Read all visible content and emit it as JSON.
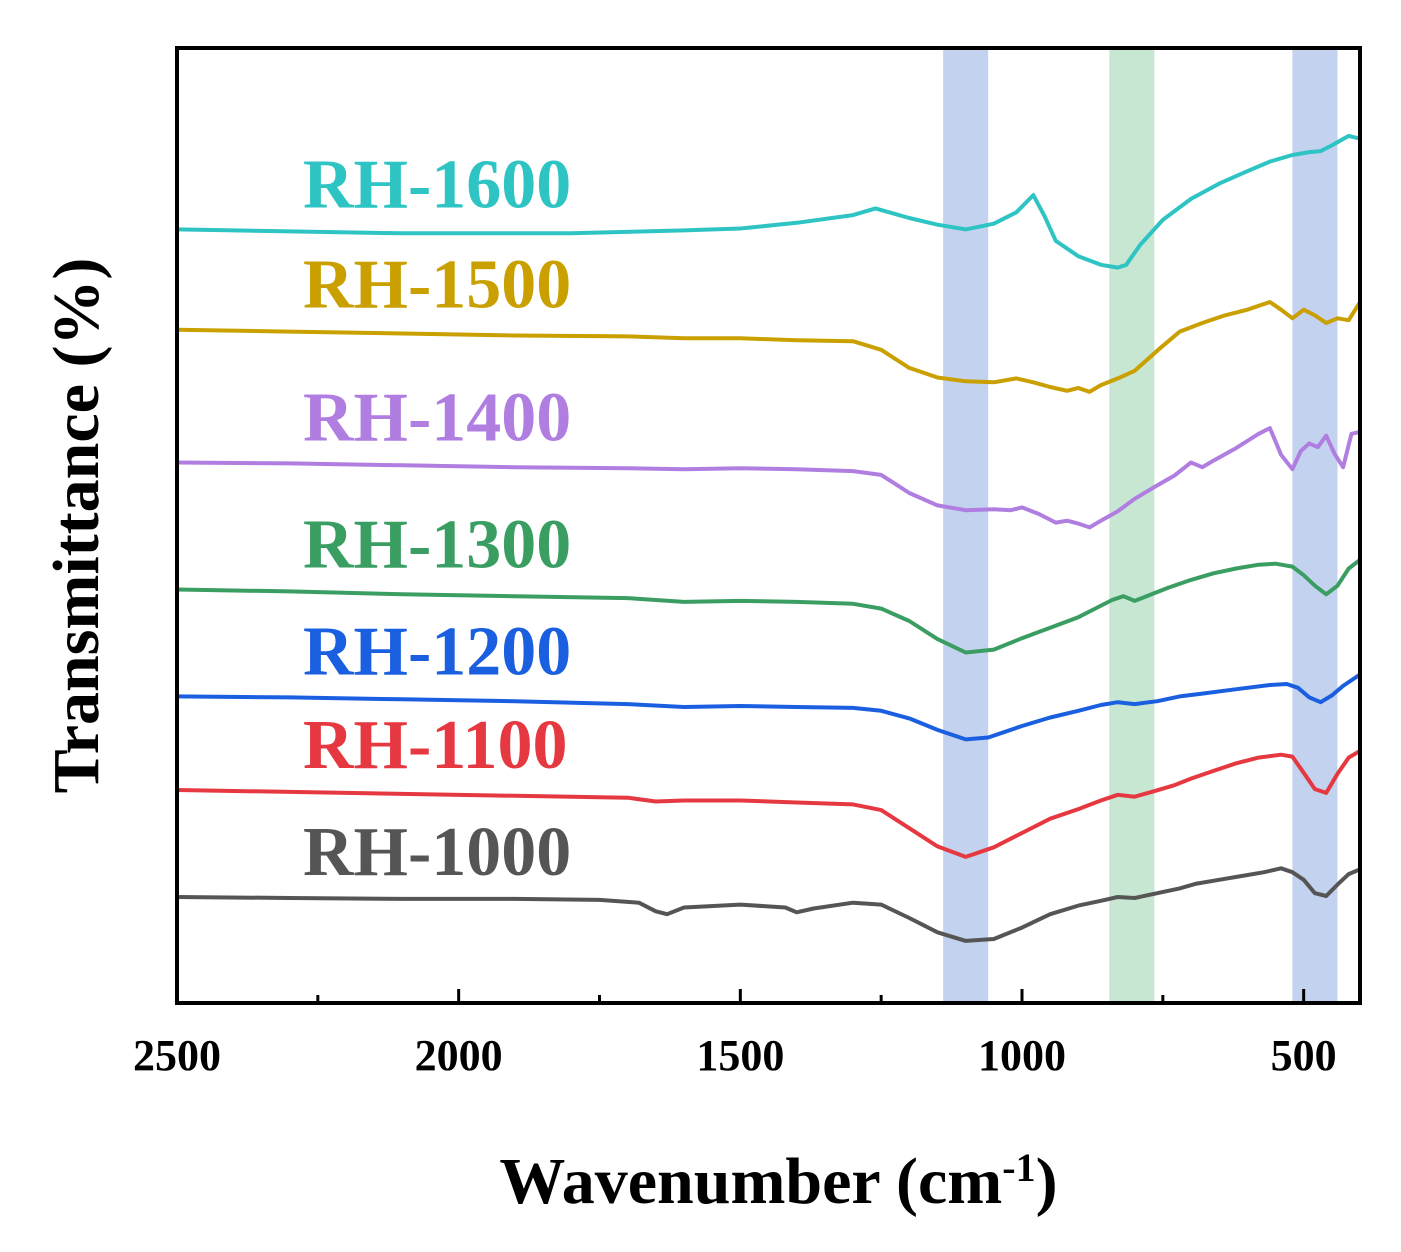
{
  "chart_data": {
    "type": "line",
    "xlabel": "Wavenumber (cm",
    "xlabel_sup": "-1",
    "xlabel_end": ")",
    "ylabel": "Transmittance (%)",
    "xlim": [
      2500,
      400
    ],
    "x_reversed": true,
    "ylim": [
      0,
      100
    ],
    "y_ticks_shown": false,
    "grid": false,
    "x_ticks": [
      2500,
      2000,
      1500,
      1000,
      500
    ],
    "x_tick_labels": [
      "2500",
      "2000",
      "1500",
      "1000",
      "500"
    ],
    "bands": [
      {
        "from": 1140,
        "to": 1060,
        "color": "#c3d2ee"
      },
      {
        "from": 845,
        "to": 765,
        "color": "#c7e7d3"
      },
      {
        "from": 520,
        "to": 440,
        "color": "#c3d2ee"
      }
    ],
    "series": [
      {
        "name": "RH-1600",
        "color": "#2ec4c4",
        "points": [
          [
            2500,
            81
          ],
          [
            2300,
            80.8
          ],
          [
            2100,
            80.6
          ],
          [
            1800,
            80.6
          ],
          [
            1600,
            80.9
          ],
          [
            1500,
            81.1
          ],
          [
            1400,
            81.7
          ],
          [
            1300,
            82.5
          ],
          [
            1260,
            83.2
          ],
          [
            1200,
            82.2
          ],
          [
            1150,
            81.5
          ],
          [
            1100,
            81
          ],
          [
            1050,
            81.6
          ],
          [
            1010,
            82.8
          ],
          [
            980,
            84.6
          ],
          [
            960,
            82.4
          ],
          [
            940,
            79.8
          ],
          [
            900,
            78.2
          ],
          [
            860,
            77.3
          ],
          [
            830,
            77
          ],
          [
            815,
            77.3
          ],
          [
            790,
            79.4
          ],
          [
            750,
            82
          ],
          [
            700,
            84.2
          ],
          [
            650,
            85.8
          ],
          [
            600,
            87.1
          ],
          [
            560,
            88.1
          ],
          [
            520,
            88.8
          ],
          [
            490,
            89.1
          ],
          [
            470,
            89.2
          ],
          [
            450,
            89.8
          ],
          [
            420,
            90.8
          ],
          [
            400,
            90.5
          ]
        ]
      },
      {
        "name": "RH-1500",
        "color": "#c9a000",
        "points": [
          [
            2500,
            70.5
          ],
          [
            2300,
            70.3
          ],
          [
            2100,
            70.1
          ],
          [
            1900,
            69.9
          ],
          [
            1700,
            69.8
          ],
          [
            1600,
            69.6
          ],
          [
            1500,
            69.6
          ],
          [
            1400,
            69.4
          ],
          [
            1300,
            69.3
          ],
          [
            1250,
            68.4
          ],
          [
            1200,
            66.5
          ],
          [
            1150,
            65.5
          ],
          [
            1100,
            65.1
          ],
          [
            1050,
            65
          ],
          [
            1010,
            65.4
          ],
          [
            980,
            65
          ],
          [
            950,
            64.5
          ],
          [
            920,
            64.1
          ],
          [
            900,
            64.4
          ],
          [
            880,
            64
          ],
          [
            860,
            64.7
          ],
          [
            830,
            65.4
          ],
          [
            800,
            66.2
          ],
          [
            760,
            68.3
          ],
          [
            720,
            70.3
          ],
          [
            680,
            71.2
          ],
          [
            640,
            72
          ],
          [
            600,
            72.6
          ],
          [
            560,
            73.4
          ],
          [
            540,
            72.6
          ],
          [
            520,
            71.7
          ],
          [
            500,
            72.6
          ],
          [
            480,
            72
          ],
          [
            460,
            71.2
          ],
          [
            440,
            71.7
          ],
          [
            420,
            71.5
          ],
          [
            400,
            73.4
          ]
        ]
      },
      {
        "name": "RH-1400",
        "color": "#b07ee0",
        "points": [
          [
            2500,
            56.6
          ],
          [
            2300,
            56.5
          ],
          [
            2100,
            56.3
          ],
          [
            1900,
            56.1
          ],
          [
            1700,
            56
          ],
          [
            1600,
            55.9
          ],
          [
            1500,
            56
          ],
          [
            1400,
            55.9
          ],
          [
            1300,
            55.7
          ],
          [
            1250,
            55.3
          ],
          [
            1200,
            53.4
          ],
          [
            1150,
            52.1
          ],
          [
            1100,
            51.6
          ],
          [
            1050,
            51.7
          ],
          [
            1020,
            51.6
          ],
          [
            1000,
            51.9
          ],
          [
            970,
            51.2
          ],
          [
            940,
            50.3
          ],
          [
            920,
            50.5
          ],
          [
            900,
            50.2
          ],
          [
            880,
            49.8
          ],
          [
            860,
            50.5
          ],
          [
            830,
            51.5
          ],
          [
            800,
            52.8
          ],
          [
            760,
            54.2
          ],
          [
            730,
            55.2
          ],
          [
            700,
            56.6
          ],
          [
            680,
            56.1
          ],
          [
            660,
            56.8
          ],
          [
            620,
            58.1
          ],
          [
            580,
            59.6
          ],
          [
            560,
            60.2
          ],
          [
            540,
            57.4
          ],
          [
            520,
            55.9
          ],
          [
            505,
            57.8
          ],
          [
            490,
            58.6
          ],
          [
            475,
            58.2
          ],
          [
            460,
            59.4
          ],
          [
            445,
            57.5
          ],
          [
            430,
            56.1
          ],
          [
            415,
            59.6
          ],
          [
            400,
            59.8
          ]
        ]
      },
      {
        "name": "RH-1300",
        "color": "#3a9e63",
        "points": [
          [
            2500,
            43.3
          ],
          [
            2300,
            43.1
          ],
          [
            2100,
            42.8
          ],
          [
            1900,
            42.6
          ],
          [
            1700,
            42.4
          ],
          [
            1600,
            42
          ],
          [
            1500,
            42.1
          ],
          [
            1400,
            42
          ],
          [
            1300,
            41.8
          ],
          [
            1250,
            41.3
          ],
          [
            1200,
            40
          ],
          [
            1150,
            38.1
          ],
          [
            1100,
            36.7
          ],
          [
            1050,
            37
          ],
          [
            1000,
            38.2
          ],
          [
            950,
            39.3
          ],
          [
            900,
            40.4
          ],
          [
            870,
            41.3
          ],
          [
            840,
            42.2
          ],
          [
            820,
            42.6
          ],
          [
            800,
            42.1
          ],
          [
            770,
            42.8
          ],
          [
            740,
            43.5
          ],
          [
            700,
            44.3
          ],
          [
            660,
            45
          ],
          [
            620,
            45.5
          ],
          [
            580,
            45.9
          ],
          [
            550,
            46
          ],
          [
            520,
            45.7
          ],
          [
            500,
            44.8
          ],
          [
            480,
            43.7
          ],
          [
            460,
            42.8
          ],
          [
            440,
            43.7
          ],
          [
            420,
            45.5
          ],
          [
            400,
            46.4
          ]
        ]
      },
      {
        "name": "RH-1200",
        "color": "#1a5fe0",
        "points": [
          [
            2500,
            32.1
          ],
          [
            2300,
            32
          ],
          [
            2100,
            31.8
          ],
          [
            1900,
            31.6
          ],
          [
            1700,
            31.3
          ],
          [
            1600,
            31
          ],
          [
            1500,
            31.1
          ],
          [
            1400,
            31
          ],
          [
            1300,
            30.9
          ],
          [
            1250,
            30.6
          ],
          [
            1200,
            29.8
          ],
          [
            1150,
            28.6
          ],
          [
            1100,
            27.6
          ],
          [
            1060,
            27.8
          ],
          [
            1000,
            29
          ],
          [
            950,
            29.9
          ],
          [
            900,
            30.6
          ],
          [
            860,
            31.2
          ],
          [
            830,
            31.5
          ],
          [
            800,
            31.3
          ],
          [
            760,
            31.6
          ],
          [
            720,
            32.1
          ],
          [
            680,
            32.4
          ],
          [
            640,
            32.7
          ],
          [
            600,
            33
          ],
          [
            560,
            33.3
          ],
          [
            530,
            33.4
          ],
          [
            510,
            33
          ],
          [
            490,
            32
          ],
          [
            470,
            31.5
          ],
          [
            450,
            32.2
          ],
          [
            430,
            33.2
          ],
          [
            400,
            34.4
          ]
        ]
      },
      {
        "name": "RH-1100",
        "color": "#e63840",
        "points": [
          [
            2500,
            22.3
          ],
          [
            2300,
            22.1
          ],
          [
            2100,
            21.9
          ],
          [
            1900,
            21.7
          ],
          [
            1700,
            21.5
          ],
          [
            1650,
            21.1
          ],
          [
            1600,
            21.2
          ],
          [
            1500,
            21.2
          ],
          [
            1400,
            21
          ],
          [
            1300,
            20.8
          ],
          [
            1250,
            20.2
          ],
          [
            1200,
            18.3
          ],
          [
            1150,
            16.4
          ],
          [
            1100,
            15.3
          ],
          [
            1050,
            16.3
          ],
          [
            1000,
            17.8
          ],
          [
            950,
            19.3
          ],
          [
            900,
            20.3
          ],
          [
            860,
            21.2
          ],
          [
            830,
            21.8
          ],
          [
            800,
            21.6
          ],
          [
            770,
            22.1
          ],
          [
            730,
            22.8
          ],
          [
            700,
            23.5
          ],
          [
            660,
            24.3
          ],
          [
            620,
            25.1
          ],
          [
            580,
            25.7
          ],
          [
            540,
            26
          ],
          [
            520,
            25.8
          ],
          [
            500,
            24.1
          ],
          [
            480,
            22.4
          ],
          [
            460,
            22
          ],
          [
            440,
            24
          ],
          [
            420,
            25.7
          ],
          [
            400,
            26.4
          ]
        ]
      },
      {
        "name": "RH-1000",
        "color": "#555555",
        "points": [
          [
            2500,
            11.1
          ],
          [
            2300,
            11
          ],
          [
            2100,
            10.9
          ],
          [
            1900,
            10.9
          ],
          [
            1750,
            10.8
          ],
          [
            1680,
            10.5
          ],
          [
            1650,
            9.6
          ],
          [
            1630,
            9.3
          ],
          [
            1600,
            10
          ],
          [
            1500,
            10.3
          ],
          [
            1420,
            10
          ],
          [
            1400,
            9.5
          ],
          [
            1370,
            9.9
          ],
          [
            1300,
            10.5
          ],
          [
            1250,
            10.3
          ],
          [
            1200,
            8.9
          ],
          [
            1150,
            7.4
          ],
          [
            1100,
            6.5
          ],
          [
            1050,
            6.7
          ],
          [
            1000,
            7.9
          ],
          [
            950,
            9.3
          ],
          [
            900,
            10.2
          ],
          [
            860,
            10.7
          ],
          [
            830,
            11.1
          ],
          [
            800,
            11
          ],
          [
            760,
            11.5
          ],
          [
            720,
            12
          ],
          [
            690,
            12.5
          ],
          [
            650,
            12.9
          ],
          [
            610,
            13.3
          ],
          [
            570,
            13.7
          ],
          [
            540,
            14.1
          ],
          [
            520,
            13.7
          ],
          [
            500,
            12.9
          ],
          [
            480,
            11.5
          ],
          [
            460,
            11.2
          ],
          [
            440,
            12.4
          ],
          [
            420,
            13.5
          ],
          [
            400,
            14
          ]
        ]
      }
    ]
  }
}
